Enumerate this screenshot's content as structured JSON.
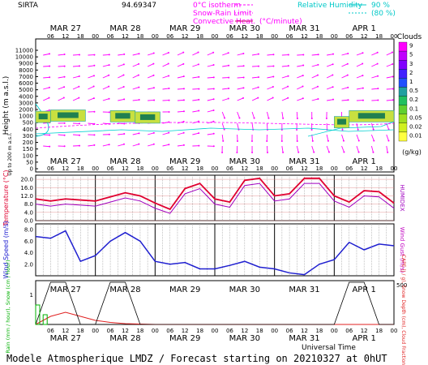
{
  "header": {
    "station": "SIRTA",
    "station_id": "94.69347",
    "legend_left": [
      "0°C isotherm",
      "Snow-Rain Limit",
      "Convective Heat.",
      "(°C/minute)"
    ],
    "legend_right": [
      "Relative Humidity",
      "90 %",
      "(80 %)"
    ]
  },
  "footer": {
    "title": "Modele Atmospherique LMDZ / Forecast starting on 20210327 at 0hUT",
    "axis_label": "Universal Time"
  },
  "colors": {
    "isotherm": "#ff00ff",
    "humidity": "#00e0e0",
    "temperature": "#e00030",
    "wind": "#2020d0",
    "rain": "#00b000",
    "snow": "#0000ff",
    "cape": "#e02020",
    "cloud_fraction": "#000000"
  },
  "chart_data": [
    {
      "type": "heatmap",
      "panel": "clouds",
      "days": [
        "MAR 27",
        "MAR 28",
        "MAR 29",
        "MAR 30",
        "MAR 31",
        "APR 1"
      ],
      "hour_ticks": [
        "06",
        "12",
        "18",
        "00"
      ],
      "ylabel": "Height (m a.s.l.)",
      "ylabel_low": "Up to 200 m a.s.l.",
      "yticks": [
        "11000",
        "10000",
        "9000",
        "8000",
        "7000",
        "6000",
        "5000",
        "4000",
        "3000",
        "2000",
        "1000",
        "500",
        "400",
        "300",
        "200",
        "150",
        "100",
        "50",
        "0"
      ],
      "colorbar_title": "Clouds",
      "colorbar_unit": "(g/kg)",
      "colorbar_ticks": [
        "9",
        "5",
        "3",
        "2",
        "1",
        "0.5",
        "0.2",
        "0.1",
        "0.05",
        "0.02",
        "0.01"
      ],
      "colorbar_colors": [
        "#ff00ff",
        "#c000ff",
        "#8000ff",
        "#4020ff",
        "#2050ff",
        "#20a0a0",
        "#20c060",
        "#60d030",
        "#a0e020",
        "#d0f020",
        "#ffff40"
      ],
      "cloud_patches": [
        {
          "hour_start": 0,
          "hour_end": 6,
          "height_m": 1000
        },
        {
          "hour_start": 6,
          "hour_end": 20,
          "height_m": 1200
        },
        {
          "hour_start": 30,
          "hour_end": 40,
          "height_m": 1100
        },
        {
          "hour_start": 40,
          "hour_end": 50,
          "height_m": 900
        },
        {
          "hour_start": 120,
          "hour_end": 126,
          "height_m": 200
        },
        {
          "hour_start": 126,
          "hour_end": 144,
          "height_m": 1100
        }
      ]
    },
    {
      "type": "line",
      "panel": "temperature",
      "ylabel": "Temperature (°C)",
      "ylabel_right": "HUMIDEX",
      "yticks": [
        "20.0",
        "16.0",
        "12.0",
        "8.0",
        "4.0",
        "0.0"
      ],
      "ylim": [
        0,
        22
      ],
      "x_hours": [
        0,
        6,
        12,
        18,
        24,
        30,
        36,
        42,
        48,
        54,
        60,
        66,
        72,
        78,
        84,
        90,
        96,
        102,
        108,
        114,
        120,
        126,
        132,
        138,
        144
      ],
      "series": [
        {
          "name": "Temperature",
          "values": [
            10.5,
            9.5,
            10.5,
            10.0,
            9.5,
            11.5,
            13.5,
            12.0,
            8.5,
            5.5,
            15.5,
            18.0,
            10.5,
            9.0,
            19.5,
            20.5,
            12.0,
            13.0,
            20.5,
            20.5,
            12.0,
            9.0,
            14.5,
            14.0,
            8.5
          ]
        },
        {
          "name": "Humidex",
          "values": [
            8.0,
            7.0,
            8.0,
            7.5,
            7.0,
            9.0,
            11.0,
            9.5,
            6.0,
            3.5,
            13.0,
            15.5,
            8.0,
            6.5,
            17.0,
            18.0,
            9.5,
            10.5,
            18.0,
            18.0,
            9.5,
            6.5,
            12.0,
            11.5,
            6.0
          ]
        }
      ]
    },
    {
      "type": "line",
      "panel": "wind",
      "ylabel": "Wind Speed (m/s)",
      "ylabel_right": "Wind Gust (m/s)",
      "yticks": [
        "8.0",
        "6.0",
        "4.0",
        "2.0"
      ],
      "ylim": [
        0,
        9
      ],
      "x_hours": [
        0,
        6,
        12,
        18,
        24,
        30,
        36,
        42,
        48,
        54,
        60,
        66,
        72,
        78,
        84,
        90,
        96,
        102,
        108,
        114,
        120,
        126,
        132,
        138,
        144
      ],
      "series": [
        {
          "name": "Wind Speed",
          "values": [
            6.8,
            6.5,
            7.8,
            2.5,
            3.5,
            6.0,
            7.5,
            6.0,
            2.5,
            2.0,
            2.3,
            1.2,
            1.2,
            1.8,
            2.5,
            1.5,
            1.2,
            0.5,
            0.2,
            2.0,
            2.8,
            5.8,
            4.5,
            5.5,
            5.2
          ]
        }
      ]
    },
    {
      "type": "bar",
      "panel": "precipitation",
      "ylabel": "Rain (mm / hour), Snow (cm / hour)",
      "ylabel_right": "CAPE (J / g), Snow Depth (cm), Cloud Fraction",
      "ytick_left": "1",
      "ytick_right": "500",
      "rain_hours": [
        0,
        3
      ],
      "rain_values": [
        0.6,
        0.3
      ],
      "cape_values": [
        0,
        20,
        30,
        20,
        10,
        5,
        2,
        1,
        0,
        0,
        0,
        0,
        0,
        0,
        0,
        0,
        0,
        0,
        0,
        0,
        0,
        0,
        0,
        0,
        0
      ],
      "cloud_fraction_values": [
        0.0,
        1.0,
        1.0,
        0.0,
        0.0,
        1.0,
        1.0,
        0.0,
        0.0,
        0.0,
        0.0,
        0.0,
        0.0,
        0.0,
        0.0,
        0.0,
        0.0,
        0.0,
        0.0,
        0.0,
        0.0,
        1.0,
        1.0,
        0.0,
        0.0
      ]
    }
  ]
}
